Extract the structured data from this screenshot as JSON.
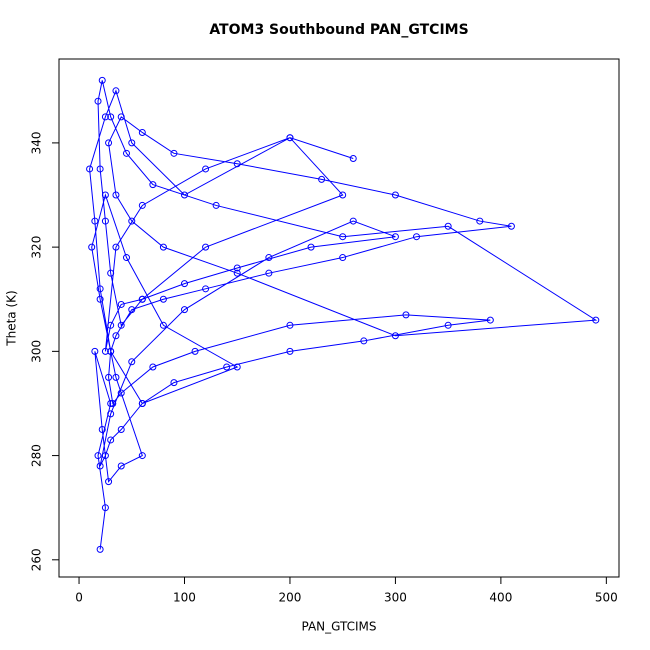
{
  "chart_data": {
    "type": "line",
    "title": "ATOM3 Southbound PAN_GTCIMS",
    "x_label": "PAN_GTCIMS",
    "y_label": "Theta (K)",
    "x": [
      20,
      25,
      18,
      30,
      15,
      22,
      28,
      40,
      60,
      35,
      20,
      12,
      25,
      45,
      80,
      150,
      60,
      30,
      20,
      15,
      10,
      25,
      35,
      50,
      100,
      200,
      250,
      120,
      60,
      40,
      30,
      25,
      20,
      18,
      22,
      30,
      45,
      70,
      130,
      250,
      350,
      490,
      300,
      150,
      80,
      50,
      35,
      28,
      40,
      60,
      90,
      150,
      230,
      300,
      380,
      410,
      320,
      250,
      180,
      120,
      80,
      50,
      35,
      30,
      28,
      32,
      40,
      70,
      110,
      200,
      310,
      390,
      350,
      270,
      200,
      140,
      90,
      60,
      40,
      30,
      25,
      20,
      30,
      50,
      100,
      180,
      260,
      300,
      220,
      150,
      100,
      60,
      40,
      30,
      25,
      35,
      60,
      120,
      200,
      260
    ],
    "values": [
      262,
      270,
      280,
      290,
      300,
      285,
      275,
      278,
      280,
      295,
      310,
      320,
      330,
      318,
      305,
      297,
      290,
      300,
      312,
      325,
      335,
      345,
      350,
      340,
      330,
      341,
      330,
      320,
      310,
      305,
      315,
      325,
      335,
      348,
      352,
      345,
      338,
      332,
      328,
      322,
      324,
      306,
      303,
      315,
      320,
      325,
      330,
      340,
      345,
      342,
      338,
      336,
      333,
      330,
      325,
      324,
      322,
      318,
      315,
      312,
      310,
      308,
      303,
      300,
      295,
      290,
      292,
      297,
      300,
      305,
      307,
      306,
      305,
      302,
      300,
      297,
      294,
      290,
      285,
      283,
      280,
      278,
      288,
      298,
      308,
      318,
      325,
      322,
      320,
      316,
      313,
      310,
      309,
      305,
      300,
      320,
      328,
      335,
      341,
      337
    ],
    "color": "#0000ff",
    "xlim": [
      -19,
      512
    ],
    "ylim": [
      256.7,
      356.1
    ],
    "xticks": [
      0,
      100,
      200,
      300,
      400,
      500
    ],
    "yticks": [
      260,
      280,
      300,
      320,
      340
    ]
  }
}
